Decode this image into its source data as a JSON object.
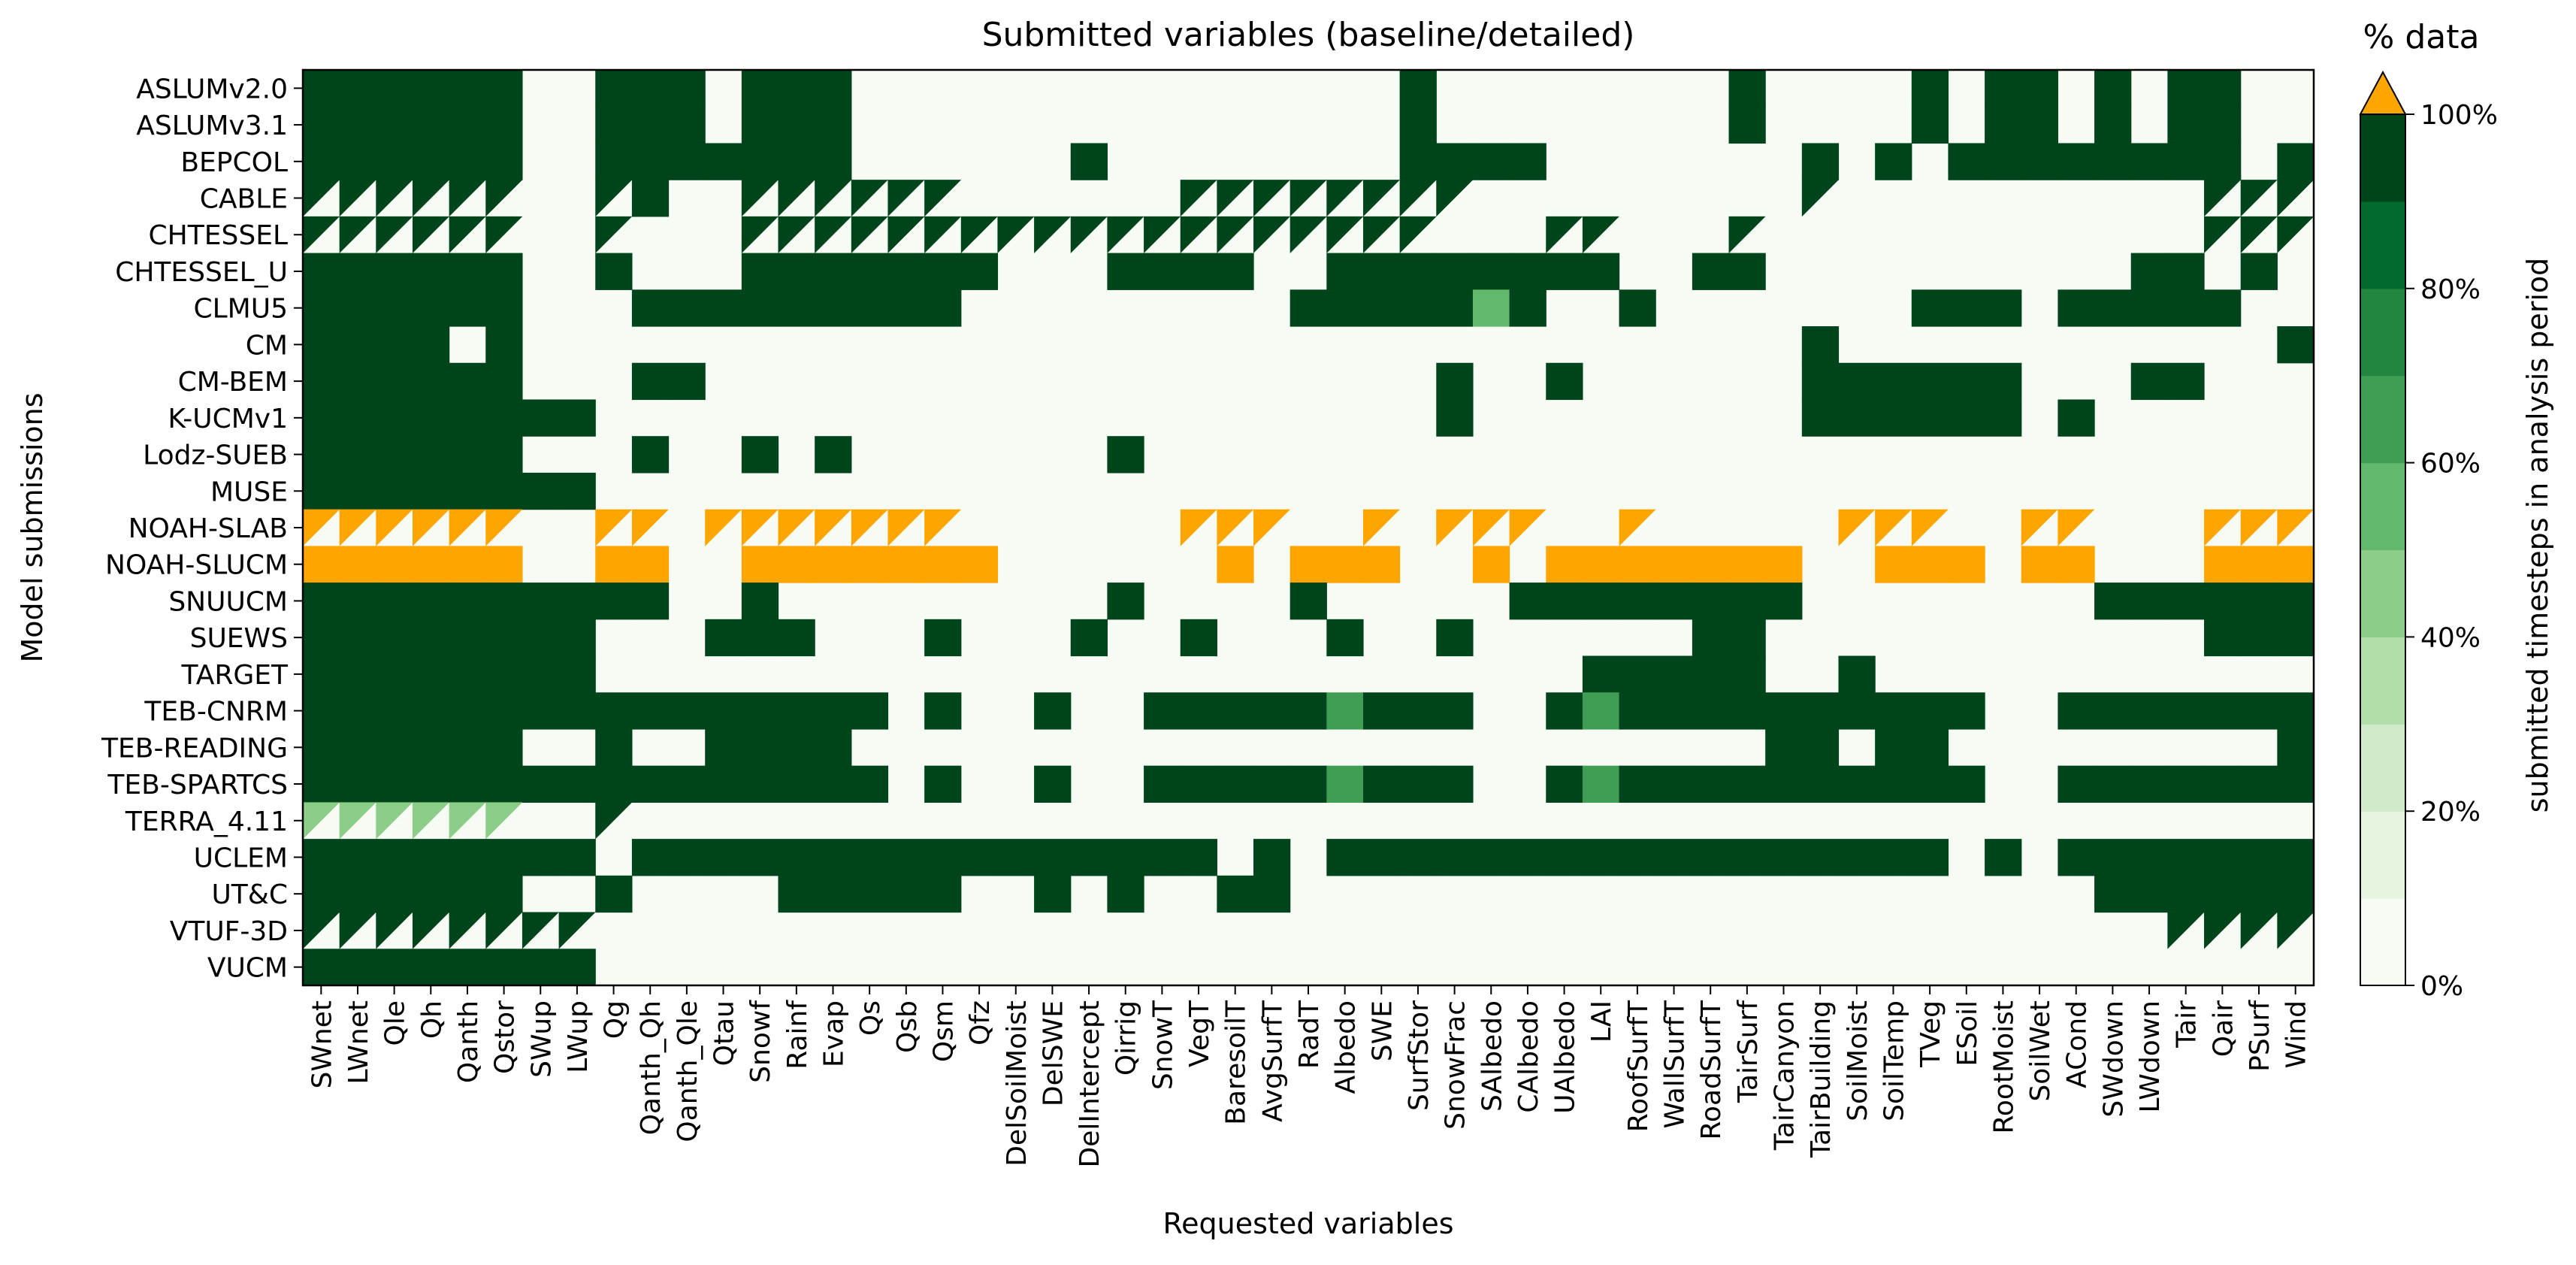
{
  "chart_data": {
    "type": "heatmap",
    "title": "Submitted variables (baseline/detailed)",
    "xlabel": "Requested variables",
    "ylabel": "Model submissions",
    "colorbar": {
      "title": "% data",
      "label": "submitted timesteps in analysis period",
      "ticks": [
        "0%",
        "20%",
        "40%",
        "60%",
        "80%",
        "100%"
      ],
      "range": [
        0,
        100
      ],
      "steps": 10,
      "extend": "max",
      "colors": [
        "#f6fbf3",
        "#e6f4e0",
        "#d1ebca",
        "#b1dea9",
        "#8ccd88",
        "#62b86b",
        "#3f9d54",
        "#228540",
        "#026a2e",
        "#00441b"
      ],
      "over_color": "#ffa500"
    },
    "over_color": "#ffa500",
    "split_note": "codes: 0 empty; 1..10 bin; 11 over; A/B/C = baseline green-bin 10 / 5 / over (upper-left) with detailed empty",
    "variables": [
      "SWnet",
      "LWnet",
      "Qle",
      "Qh",
      "Qanth",
      "Qstor",
      "SWup",
      "LWup",
      "Qg",
      "Qanth_Qh",
      "Qanth_Qle",
      "Qtau",
      "Snowf",
      "Rainf",
      "Evap",
      "Qs",
      "Qsb",
      "Qsm",
      "Qfz",
      "DelSoilMoist",
      "DelSWE",
      "DelIntercept",
      "Qirrig",
      "SnowT",
      "VegT",
      "BaresoilT",
      "AvgSurfT",
      "RadT",
      "Albedo",
      "SWE",
      "SurfStor",
      "SnowFrac",
      "SAlbedo",
      "CAlbedo",
      "UAlbedo",
      "LAI",
      "RoofSurfT",
      "WallSurfT",
      "RoadSurfT",
      "TairSurf",
      "TairCanyon",
      "TairBuilding",
      "SoilMoist",
      "SoilTemp",
      "TVeg",
      "ESoil",
      "RootMoist",
      "SoilWet",
      "ACond",
      "SWdown",
      "LWdown",
      "Tair",
      "Qair",
      "PSurf",
      "Wind"
    ],
    "models": [
      "ASLUMv2.0",
      "ASLUMv3.1",
      "BEPCOL",
      "CABLE",
      "CHTESSEL",
      "CHTESSEL_U",
      "CLMU5",
      "CM",
      "CM-BEM",
      "K-UCMv1",
      "Lodz-SUEB",
      "MUSE",
      "NOAH-SLAB",
      "NOAH-SLUCM",
      "SNUUCM",
      "SUEWS",
      "TARGET",
      "TEB-CNRM",
      "TEB-READING",
      "TEB-SPARTCS",
      "TERRA_4.11",
      "UCLEM",
      "UT&C",
      "VTUF-3D",
      "VUCM"
    ],
    "grid": [
      "XXXXXX..XXX.XXX...............X........X....X.XX.X.XX......XXXXXXX",
      "XXXXXX..XXX.XXX...............X........X....X.XX.X.XX......XXXXXXX",
      "XXXXXX..XXXXXXX......X........XXXX.......X.X.XXXXXXXX.X....XXXXXXX",
      "AAAAAA..AX..AAAAAA......AAAAAAAA.........A..........AAAAA...AAAAAA",
      "AAAAAA..A...AAAAAAAAAAAAAAAAAAA...AA...A............AAAA....AAAAAA",
      "XXXXXX..X...XXXXXXX...XXXX..XXXXXXXX..XX..........XX.X......XXXXXX",
      "XXXXXX...XXXXXXXXX.........XXXXX6X..X.......XXX.XXXXX.......XXXXXX",
      "XXXX.X...................................X............X.....XXXXXX",
      "XXXXXX...XX....................X..X......XXXXXX...XX.......XXXXXX",
      "XXXXXXXX.......................X.........XXXXXX.X...........XXXXXX",
      "XXXXXX...X..X.X.......X.................................XXXX.XX",
      "XXXXXXXX...........................................................",
      "CCCCCC..CC.CCCCCCC......CCC..C.CCC..C.....CCC..CC...CCCCCC",
      "OOOOOO..OO..OOOOOOO......O.OOO..O.OOOOOOO..OOO.OO...OOOOOO",
      "XXXXXXXXXX..X.........X....X.....XXXXXXXX........XXXXXX",
      "XXXXXXXX...XXX...X...X..X...X..X......XX............XXXXXX",
      "XXXXXXXX...........................XXXXX..X.............XXXXXX",
      "XXXXXXXXXXXXXXXX.X..X..XXXXX7XXX..X7XXXXXXXXXX..XXXXXXXXXX",
      "XXXXXX..X..XXXX.........................XX.XX.........XXXXXX",
      "XXXXXXXXXXXXXXXX.X..X..XXXXX7XXX..X7XXXXXXXXXX..XXXXXXXXXX",
      "BBBBBB..A...................................................BBBBBB",
      "XXXXXXXX.XXXXXXXXXXXXXXXX.X.XXXXXXXXXXXXXXXXX.X.XXXXXXXXXXX",
      "XXXXXX..X....XXXXX..X.X..XX......................XXXXXXX.XX.XXXXXX",
      "AAAAAAAA...........................................AAAAA...AAAAAA",
      "XXXXXXXX.........................................................."
    ]
  }
}
